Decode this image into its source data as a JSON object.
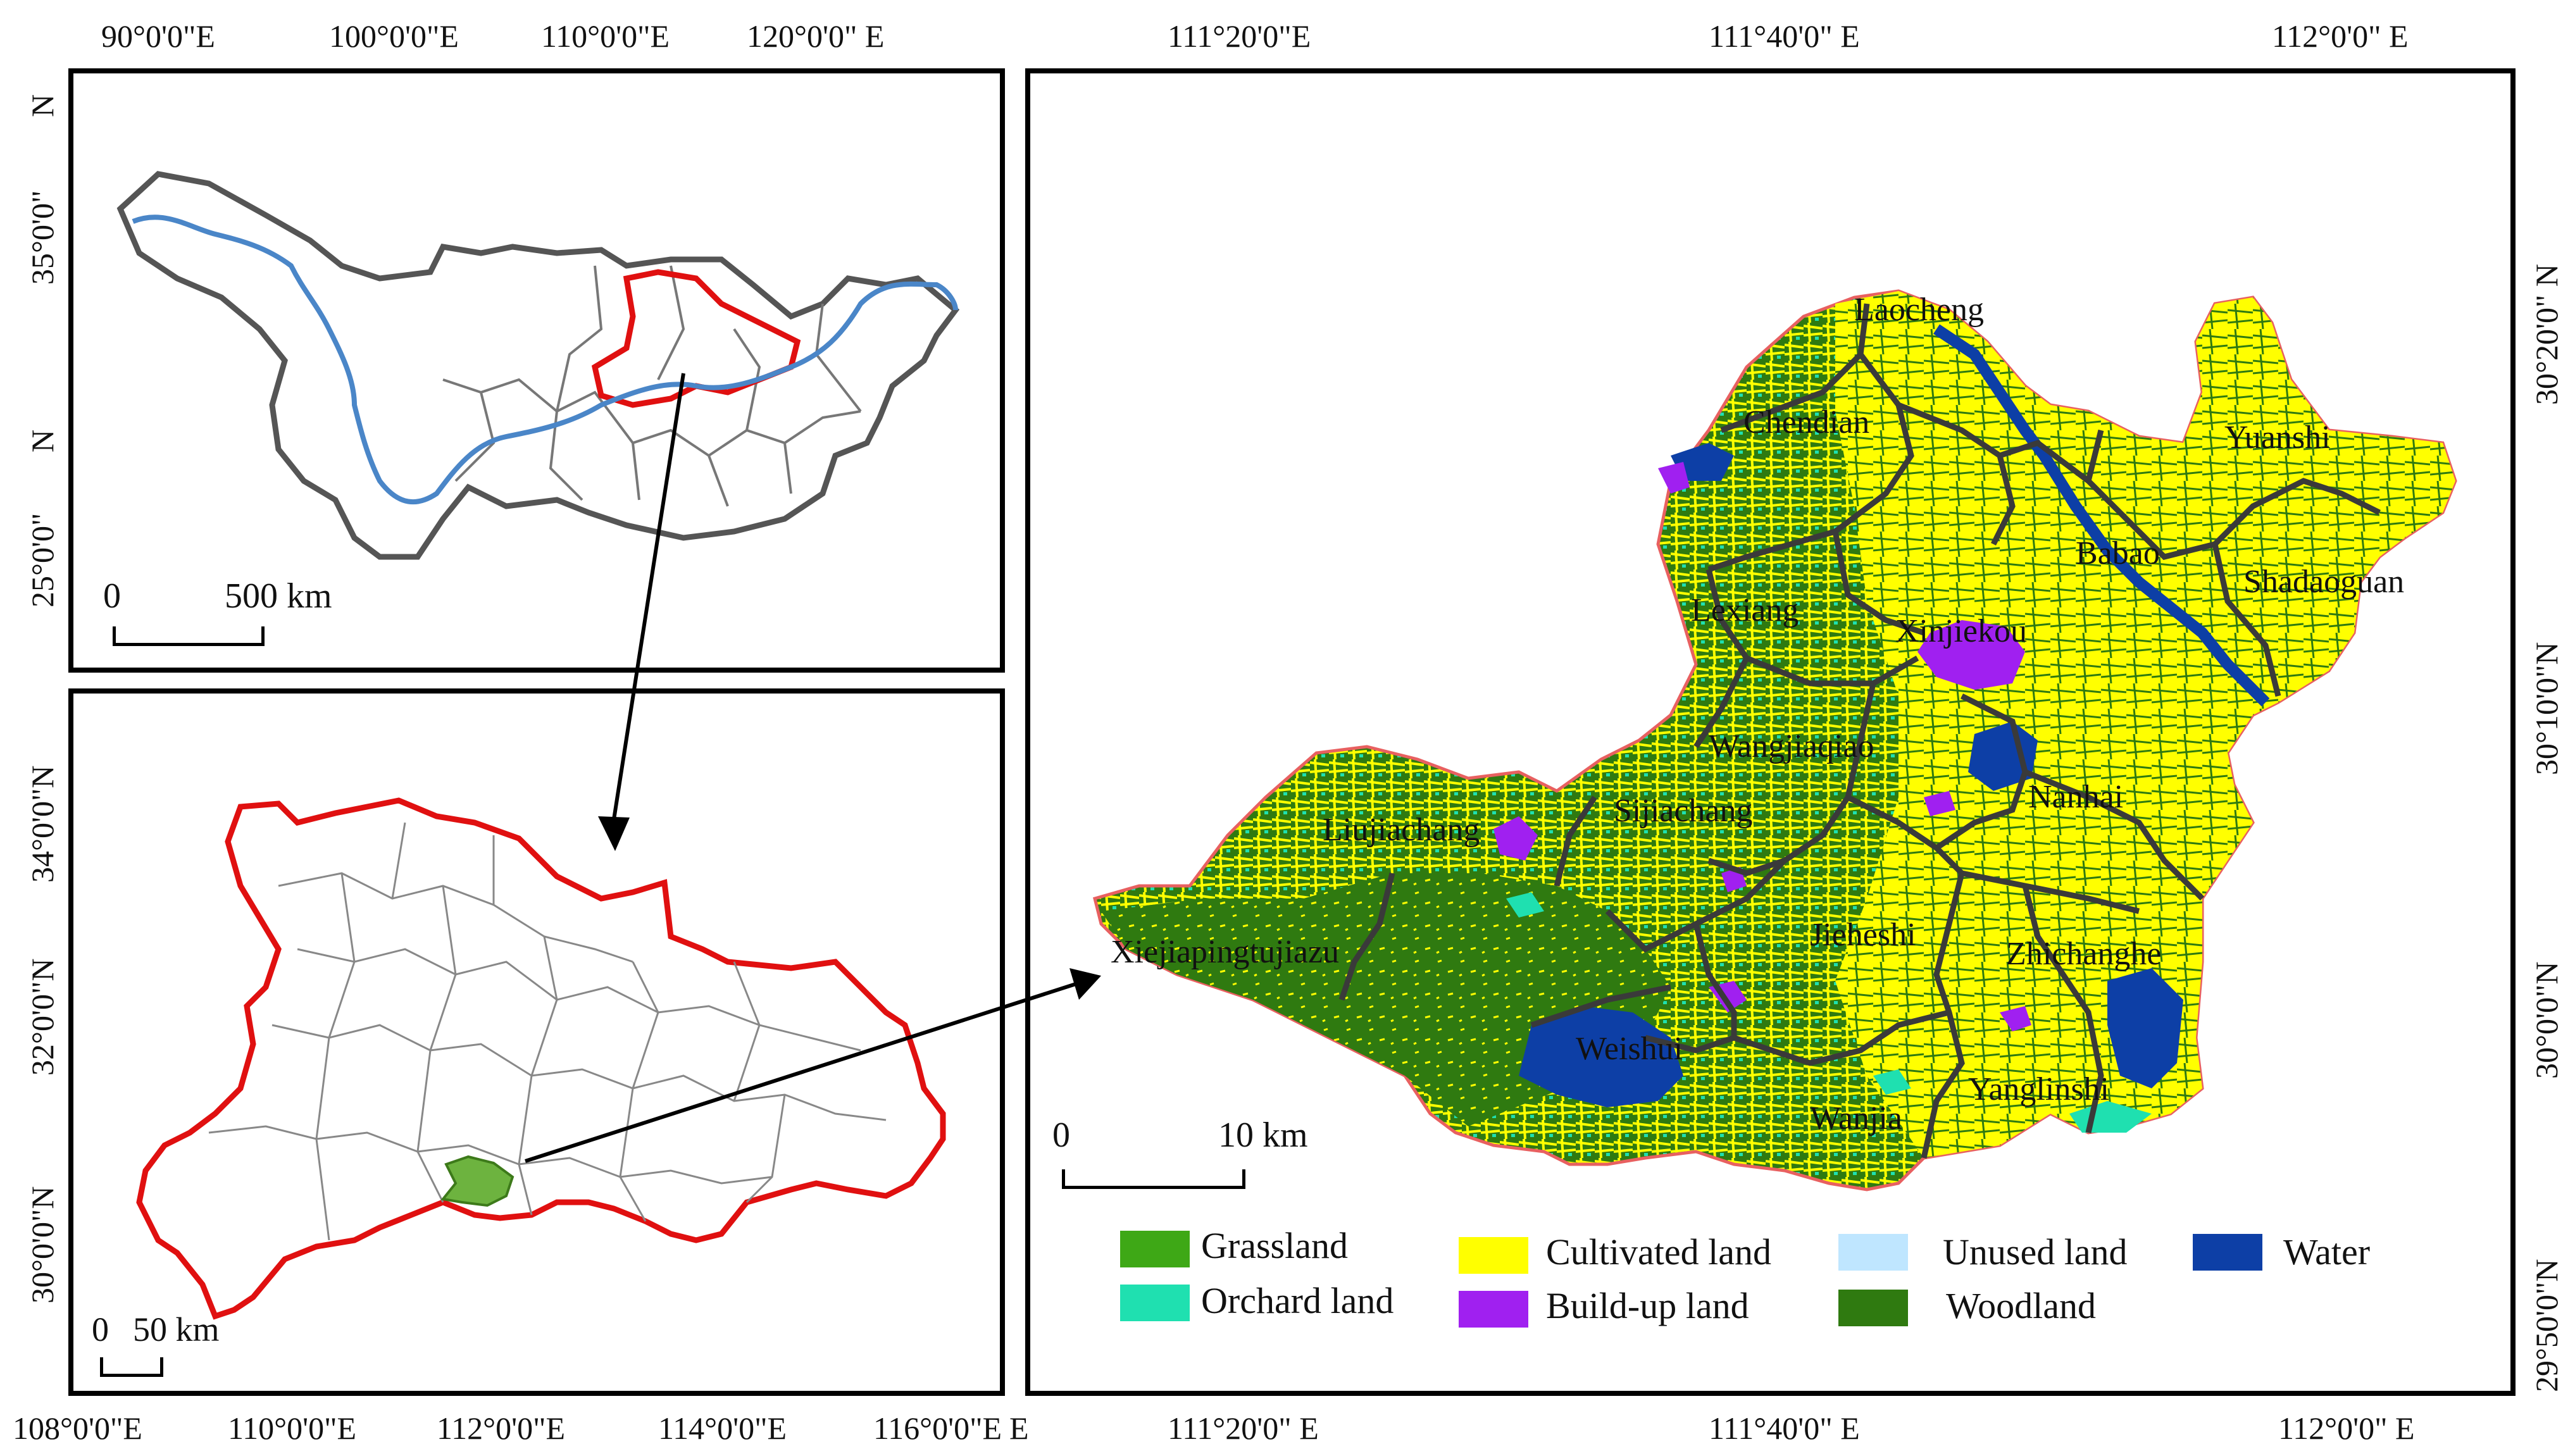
{
  "map1": {
    "top_ticks": [
      "90°0'0\"E",
      "100°0'0\"E",
      "110°0'0\"E",
      "120°0'0\" E"
    ],
    "left_ticks": [
      "N",
      "35°0'0\"",
      "N",
      "25°0'0\""
    ],
    "scale_zero": "0",
    "scale_label": "500 km"
  },
  "map2": {
    "bottom_ticks": [
      "108°0'0\"E",
      "110°0'0\"E",
      "112°0'0\"E",
      "114°0'0\"E",
      "116°0'0\"E"
    ],
    "left_ticks": [
      "34°0'0\"N",
      "32°0'0\"N",
      "30°0'0\"N"
    ],
    "scale_zero": "0",
    "scale_label": "50 km"
  },
  "map3": {
    "top_ticks": [
      "111°20'0\"E",
      "111°40'0\" E",
      "112°0'0\"   E"
    ],
    "bottom_ticks": [
      "111°20'0\"  E",
      "111°40'0\"  E",
      "112°0'0\"  E"
    ],
    "right_ticks": [
      "30°20'0\" N",
      "30°10'0\"N",
      "30°0'0\"N",
      "29°50'0\"N"
    ],
    "scale_zero": "0",
    "scale_label": "10 km",
    "corner_e": "E",
    "towns": [
      "Laocheng",
      "Chendian",
      "Yuanshi",
      "Babao",
      "Shadaoguan",
      "Lexiang",
      "Xinjiekou",
      "Wangjiaqiao",
      "Nanhai",
      "Liujiachang",
      "Sijiachang",
      "Xiejiapingtujiazu",
      "Jieheshi",
      "Zhichanghe",
      "Weishui",
      "Yanglinshi",
      "Wanjia"
    ]
  },
  "legend": [
    {
      "label": "Grassland",
      "color": "#3ea816"
    },
    {
      "label": "Orchard land",
      "color": "#1fe0b0"
    },
    {
      "label": "Cultivated land",
      "color": "#ffff00"
    },
    {
      "label": "Build-up land",
      "color": "#a020f0"
    },
    {
      "label": "Unused land",
      "color": "#bfe6ff"
    },
    {
      "label": "Woodland",
      "color": "#2f7a10"
    },
    {
      "label": "Water",
      "color": "#0d3fa6"
    }
  ]
}
